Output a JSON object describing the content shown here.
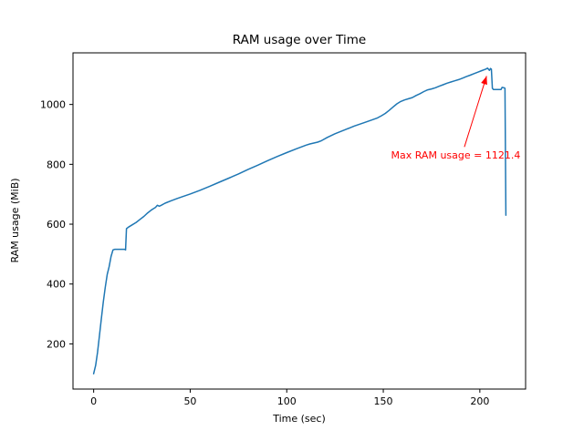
{
  "window": {
    "background": "#ffffff"
  },
  "chart_data": {
    "type": "line",
    "title": "RAM usage over Time",
    "xlabel": "Time (sec)",
    "ylabel": "RAM usage (MiB)",
    "xlim": [
      -10.7,
      223.7
    ],
    "ylim": [
      49,
      1172.5
    ],
    "xticks": [
      0,
      50,
      100,
      150,
      200
    ],
    "yticks": [
      200,
      400,
      600,
      800,
      1000
    ],
    "grid": false,
    "legend": null,
    "line_color": "#1f77b4",
    "max_value": 1121.4,
    "series": [
      {
        "name": "RAM usage",
        "points": [
          [
            0,
            100
          ],
          [
            1,
            128
          ],
          [
            2,
            172
          ],
          [
            3,
            228
          ],
          [
            4,
            285
          ],
          [
            5,
            340
          ],
          [
            6,
            388
          ],
          [
            7,
            432
          ],
          [
            8,
            458
          ],
          [
            9,
            492
          ],
          [
            10,
            514
          ],
          [
            11,
            516
          ],
          [
            16,
            516
          ],
          [
            16.5,
            514
          ],
          [
            17,
            585
          ],
          [
            18,
            590
          ],
          [
            20,
            598
          ],
          [
            22,
            606
          ],
          [
            24,
            616
          ],
          [
            26,
            626
          ],
          [
            28,
            638
          ],
          [
            30,
            648
          ],
          [
            31,
            652
          ],
          [
            32,
            656
          ],
          [
            33,
            663
          ],
          [
            34,
            660
          ],
          [
            35,
            663
          ],
          [
            37,
            670
          ],
          [
            40,
            678
          ],
          [
            43,
            685
          ],
          [
            46,
            692
          ],
          [
            50,
            701
          ],
          [
            55,
            713
          ],
          [
            60,
            726
          ],
          [
            65,
            740
          ],
          [
            70,
            754
          ],
          [
            75,
            768
          ],
          [
            80,
            783
          ],
          [
            85,
            797
          ],
          [
            90,
            812
          ],
          [
            95,
            826
          ],
          [
            100,
            839
          ],
          [
            105,
            852
          ],
          [
            110,
            864
          ],
          [
            112,
            868
          ],
          [
            114,
            871
          ],
          [
            116,
            874
          ],
          [
            118,
            879
          ],
          [
            121,
            890
          ],
          [
            125,
            902
          ],
          [
            130,
            915
          ],
          [
            135,
            928
          ],
          [
            140,
            939
          ],
          [
            144,
            948
          ],
          [
            147,
            955
          ],
          [
            149,
            962
          ],
          [
            151,
            970
          ],
          [
            153,
            980
          ],
          [
            155,
            991
          ],
          [
            157,
            1002
          ],
          [
            159,
            1010
          ],
          [
            161,
            1015
          ],
          [
            163,
            1019
          ],
          [
            165,
            1023
          ],
          [
            167,
            1030
          ],
          [
            169,
            1036
          ],
          [
            171,
            1043
          ],
          [
            173,
            1049
          ],
          [
            175,
            1052
          ],
          [
            177,
            1056
          ],
          [
            179,
            1061
          ],
          [
            181,
            1066
          ],
          [
            183,
            1071
          ],
          [
            185,
            1075
          ],
          [
            187,
            1079
          ],
          [
            189,
            1083
          ],
          [
            191,
            1088
          ],
          [
            193,
            1093
          ],
          [
            195,
            1098
          ],
          [
            197,
            1103
          ],
          [
            199,
            1108
          ],
          [
            201,
            1113
          ],
          [
            203,
            1118
          ],
          [
            204,
            1121.4
          ],
          [
            205,
            1114
          ],
          [
            205.5,
            1120
          ],
          [
            206,
            1118
          ],
          [
            206.5,
            1054
          ],
          [
            207,
            1050
          ],
          [
            209,
            1050
          ],
          [
            211,
            1050
          ],
          [
            211.5,
            1057
          ],
          [
            212.5,
            1056
          ],
          [
            213,
            1054
          ],
          [
            213.5,
            630
          ]
        ]
      }
    ],
    "annotation": {
      "text": "Max RAM usage = 1121.4",
      "color": "#ff0000",
      "text_xy": [
        154,
        820
      ],
      "arrow_from": [
        192,
        858
      ],
      "arrow_to": [
        203.5,
        1095
      ]
    }
  }
}
